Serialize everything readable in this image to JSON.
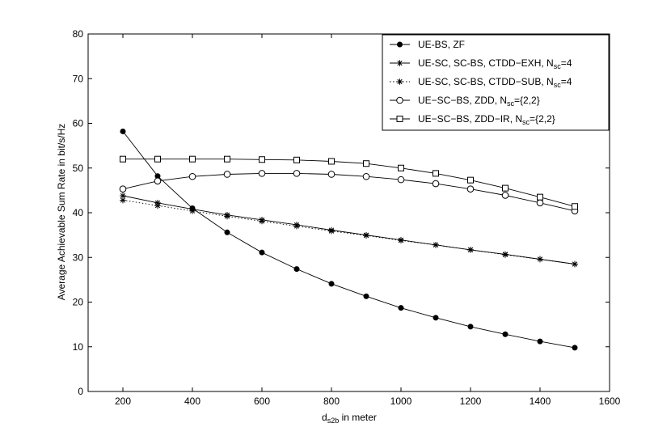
{
  "chart_data": {
    "type": "line",
    "title": "",
    "xlabel": {
      "main": "d",
      "sub": "s2b",
      "rest": " in meter"
    },
    "ylabel": "Average Achievable Sum Rate in bit/s/Hz",
    "xlim": [
      100,
      1600
    ],
    "ylim": [
      0,
      80
    ],
    "xticks": [
      200,
      400,
      600,
      800,
      1000,
      1200,
      1400,
      1600
    ],
    "yticks": [
      0,
      10,
      20,
      30,
      40,
      50,
      60,
      70,
      80
    ],
    "grid": false,
    "legend_position": "top-right",
    "x": [
      200,
      300,
      400,
      500,
      600,
      700,
      800,
      900,
      1000,
      1100,
      1200,
      1300,
      1400,
      1500
    ],
    "series": [
      {
        "name": "UE-BS, ZF",
        "legend": {
          "main": "UE-BS, ZF",
          "sub": "",
          "tail": ""
        },
        "marker": "filled-circle",
        "dash": "solid",
        "values": [
          58.2,
          48.2,
          41.0,
          35.6,
          31.1,
          27.4,
          24.1,
          21.3,
          18.7,
          16.5,
          14.5,
          12.8,
          11.2,
          9.8
        ]
      },
      {
        "name": "UE-SC, SC-BS, CTDD-EXH, N_sc=4",
        "legend": {
          "main": "UE-SC, SC-BS, CTDD−EXH, N",
          "sub": "sc",
          "tail": "=4"
        },
        "marker": "asterisk",
        "dash": "solid",
        "values": [
          43.8,
          42.2,
          40.8,
          39.5,
          38.4,
          37.3,
          36.1,
          35.0,
          33.9,
          32.8,
          31.7,
          30.7,
          29.6,
          28.5
        ]
      },
      {
        "name": "UE-SC, SC-BS, CTDD-SUB, N_sc=4",
        "legend": {
          "main": "UE-SC, SC-BS, CTDD−SUB, N",
          "sub": "sc",
          "tail": "=4"
        },
        "marker": "asterisk",
        "dash": "dotted",
        "values": [
          42.8,
          41.6,
          40.4,
          39.2,
          38.1,
          37.0,
          35.9,
          34.9,
          33.8,
          32.8,
          31.7,
          30.6,
          29.6,
          28.5
        ]
      },
      {
        "name": "UE-SC-BS, ZDD, N_sc={2,2}",
        "legend": {
          "main": "UE−SC−BS, ZDD, N",
          "sub": "sc",
          "tail": "={2,2}"
        },
        "marker": "open-circle",
        "dash": "solid",
        "values": [
          45.3,
          47.1,
          48.1,
          48.6,
          48.8,
          48.8,
          48.6,
          48.1,
          47.4,
          46.5,
          45.3,
          43.9,
          42.2,
          40.4
        ]
      },
      {
        "name": "UE-SC-BS, ZDD-IR, N_sc={2,2}",
        "legend": {
          "main": "UE−SC−BS, ZDD−IR, N",
          "sub": "sc",
          "tail": "={2,2}"
        },
        "marker": "open-square",
        "dash": "solid",
        "values": [
          52.0,
          52.0,
          52.0,
          52.0,
          51.9,
          51.8,
          51.5,
          51.0,
          50.0,
          48.8,
          47.3,
          45.5,
          43.5,
          41.4
        ]
      }
    ]
  }
}
